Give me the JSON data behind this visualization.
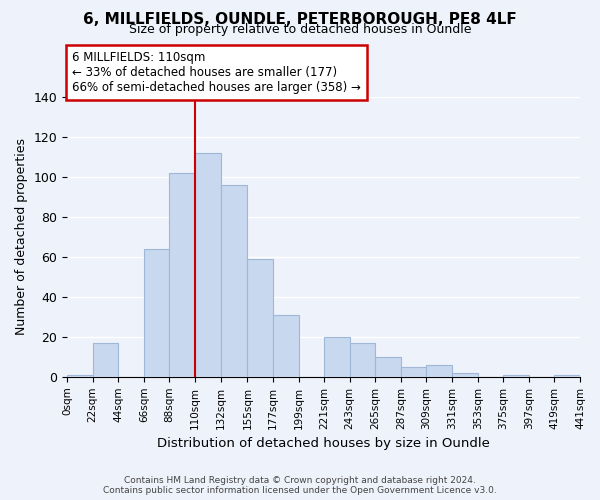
{
  "title": "6, MILLFIELDS, OUNDLE, PETERBOROUGH, PE8 4LF",
  "subtitle": "Size of property relative to detached houses in Oundle",
  "xlabel": "Distribution of detached houses by size in Oundle",
  "ylabel": "Number of detached properties",
  "bin_edges": [
    0,
    22,
    44,
    66,
    88,
    110,
    132,
    155,
    177,
    199,
    221,
    243,
    265,
    287,
    309,
    331,
    353,
    375,
    397,
    419,
    441
  ],
  "counts": [
    1,
    17,
    0,
    64,
    102,
    112,
    96,
    59,
    31,
    0,
    20,
    17,
    10,
    5,
    6,
    2,
    0,
    1,
    0,
    1
  ],
  "bar_color": "#c8d8ee",
  "bar_edgecolor": "#a0b8d8",
  "vline_x": 110,
  "vline_color": "#cc0000",
  "annotation_line1": "6 MILLFIELDS: 110sqm",
  "annotation_line2": "← 33% of detached houses are smaller (177)",
  "annotation_line3": "66% of semi-detached houses are larger (358) →",
  "annotation_box_edgecolor": "#cc0000",
  "annotation_box_facecolor": "white",
  "ylim": [
    0,
    140
  ],
  "yticks": [
    0,
    20,
    40,
    60,
    80,
    100,
    120,
    140
  ],
  "tick_labels": [
    "0sqm",
    "22sqm",
    "44sqm",
    "66sqm",
    "88sqm",
    "110sqm",
    "132sqm",
    "155sqm",
    "177sqm",
    "199sqm",
    "221sqm",
    "243sqm",
    "265sqm",
    "287sqm",
    "309sqm",
    "331sqm",
    "353sqm",
    "375sqm",
    "397sqm",
    "419sqm",
    "441sqm"
  ],
  "footnote": "Contains HM Land Registry data © Crown copyright and database right 2024.\nContains public sector information licensed under the Open Government Licence v3.0.",
  "background_color": "#eef2fa",
  "grid_color": "white"
}
